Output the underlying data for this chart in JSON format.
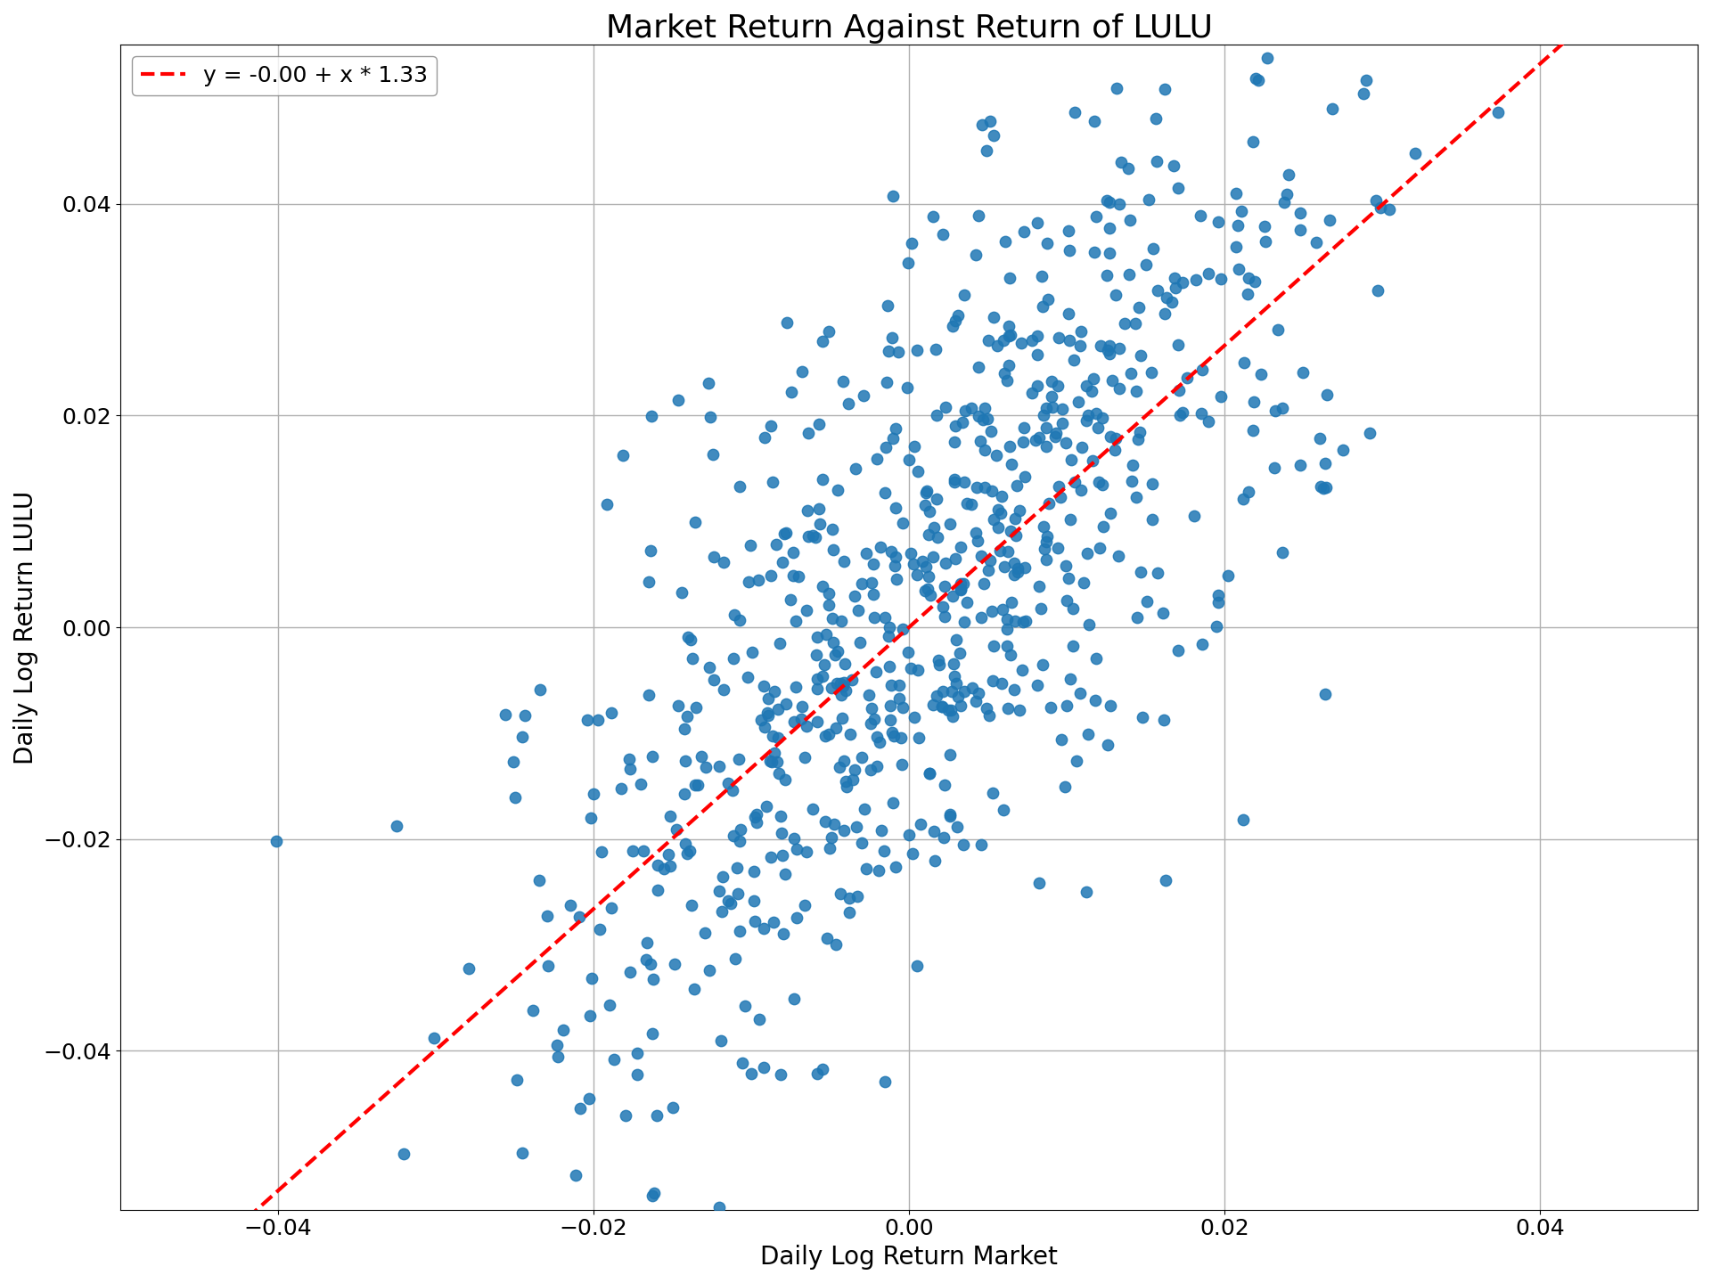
{
  "title": "Market Return Against Return of LULU",
  "xlabel": "Daily Log Return Market",
  "ylabel": "Daily Log Return LULU",
  "legend_label": "y = -0.00 + x * 1.33",
  "intercept": -0.0,
  "slope": 1.33,
  "xlim": [
    -0.05,
    0.05
  ],
  "ylim": [
    -0.055,
    0.055
  ],
  "xticks": [
    -0.04,
    -0.02,
    0.0,
    0.02,
    0.04
  ],
  "yticks": [
    -0.04,
    -0.02,
    0.0,
    0.02,
    0.04
  ],
  "scatter_color": "#1f77b4",
  "line_color": "#ff0000",
  "scatter_alpha": 0.85,
  "scatter_size": 80,
  "n_points": 750,
  "random_seed": 42,
  "market_std": 0.013,
  "residual_std": 0.016,
  "title_fontsize": 26,
  "label_fontsize": 20,
  "tick_fontsize": 18,
  "legend_fontsize": 18,
  "grid_color": "#b0b0b0",
  "grid_linewidth": 1.0,
  "figsize": [
    19.2,
    14.4
  ]
}
